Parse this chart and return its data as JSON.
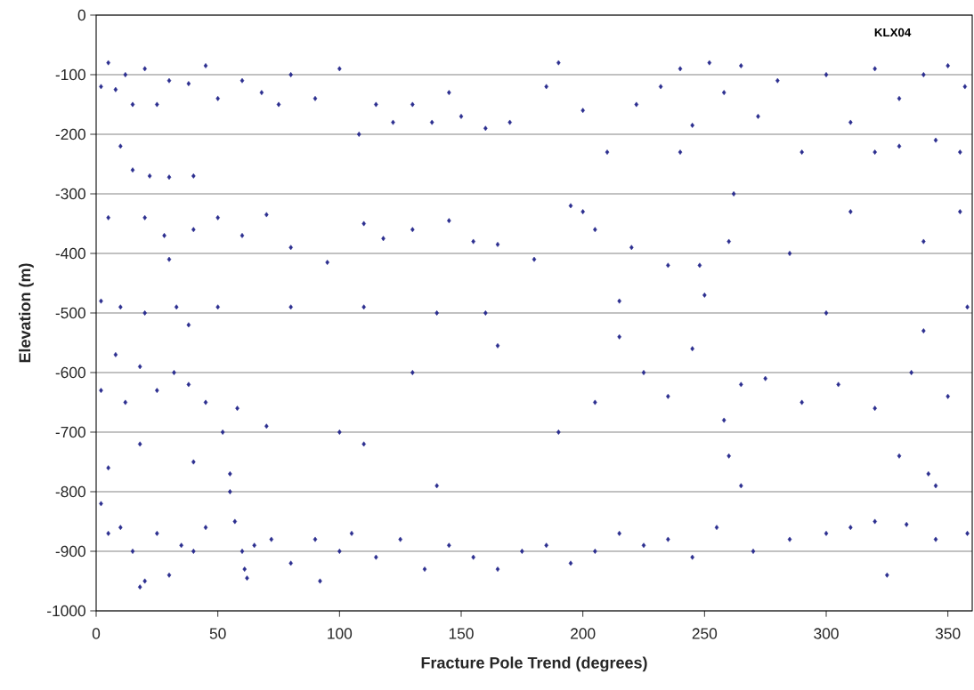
{
  "chart_data": {
    "type": "scatter",
    "xlabel": "Fracture Pole Trend (degrees)",
    "ylabel": "Elevation (m)",
    "annotations": [
      "KLX04"
    ],
    "color": "#2b2e8f",
    "marker": "diamond",
    "grid": "y",
    "xlim": [
      0,
      360
    ],
    "ylim": [
      -1000,
      0
    ],
    "xticks": [
      0,
      50,
      100,
      150,
      200,
      250,
      300,
      350
    ],
    "yticks": [
      -1000,
      -900,
      -800,
      -700,
      -600,
      -500,
      -400,
      -300,
      -200,
      -100,
      0
    ],
    "x": [
      2,
      5,
      8,
      12,
      15,
      20,
      25,
      30,
      38,
      45,
      50,
      60,
      68,
      75,
      80,
      90,
      100,
      108,
      115,
      122,
      130,
      138,
      145,
      150,
      160,
      170,
      185,
      190,
      200,
      210,
      222,
      232,
      240,
      245,
      252,
      258,
      265,
      272,
      280,
      290,
      300,
      310,
      320,
      330,
      340,
      350,
      357,
      355,
      345,
      330,
      320,
      240,
      262,
      200,
      15,
      22,
      30,
      40,
      10,
      5,
      20,
      28,
      30,
      40,
      50,
      60,
      70,
      80,
      95,
      110,
      118,
      130,
      145,
      155,
      165,
      180,
      195,
      205,
      220,
      235,
      248,
      260,
      285,
      310,
      340,
      355,
      2,
      10,
      20,
      33,
      38,
      50,
      80,
      110,
      140,
      160,
      215,
      250,
      300,
      340,
      358,
      2,
      8,
      12,
      18,
      25,
      32,
      38,
      45,
      52,
      58,
      70,
      100,
      130,
      165,
      190,
      205,
      215,
      225,
      235,
      245,
      258,
      265,
      275,
      290,
      305,
      320,
      335,
      350,
      5,
      18,
      40,
      55,
      110,
      140,
      260,
      265,
      330,
      342,
      345,
      2,
      5,
      10,
      15,
      20,
      25,
      30,
      35,
      40,
      45,
      55,
      57,
      60,
      61,
      62,
      65,
      72,
      80,
      90,
      100,
      105,
      115,
      125,
      135,
      145,
      155,
      165,
      175,
      185,
      195,
      205,
      215,
      225,
      235,
      245,
      255,
      270,
      285,
      300,
      310,
      320,
      333,
      345,
      358,
      18,
      92,
      325
    ],
    "values": [
      -120,
      -80,
      -125,
      -100,
      -150,
      -90,
      -150,
      -110,
      -115,
      -85,
      -140,
      -110,
      -130,
      -150,
      -100,
      -140,
      -90,
      -200,
      -150,
      -180,
      -150,
      -180,
      -130,
      -170,
      -190,
      -180,
      -120,
      -80,
      -160,
      -230,
      -150,
      -120,
      -90,
      -185,
      -80,
      -130,
      -85,
      -170,
      -110,
      -230,
      -100,
      -180,
      -90,
      -140,
      -100,
      -85,
      -120,
      -230,
      -210,
      -220,
      -230,
      -230,
      -300,
      -330,
      -260,
      -270,
      -272,
      -270,
      -220,
      -340,
      -340,
      -370,
      -410,
      -360,
      -340,
      -370,
      -335,
      -390,
      -415,
      -350,
      -375,
      -360,
      -345,
      -380,
      -385,
      -410,
      -320,
      -360,
      -390,
      -420,
      -420,
      -380,
      -400,
      -330,
      -380,
      -330,
      -480,
      -490,
      -500,
      -490,
      -520,
      -490,
      -490,
      -490,
      -500,
      -500,
      -480,
      -470,
      -500,
      -530,
      -490,
      -630,
      -570,
      -650,
      -590,
      -630,
      -600,
      -620,
      -650,
      -700,
      -660,
      -690,
      -700,
      -600,
      -555,
      -700,
      -650,
      -540,
      -600,
      -640,
      -560,
      -680,
      -620,
      -610,
      -650,
      -620,
      -660,
      -600,
      -640,
      -760,
      -720,
      -750,
      -770,
      -720,
      -790,
      -740,
      -790,
      -740,
      -770,
      -790,
      -820,
      -870,
      -860,
      -900,
      -950,
      -870,
      -940,
      -890,
      -900,
      -860,
      -800,
      -850,
      -900,
      -930,
      -945,
      -890,
      -880,
      -920,
      -880,
      -900,
      -870,
      -910,
      -880,
      -930,
      -890,
      -910,
      -930,
      -900,
      -890,
      -920,
      -900,
      -870,
      -890,
      -880,
      -910,
      -860,
      -900,
      -880,
      -870,
      -860,
      -850,
      -855,
      -880,
      -870,
      -960,
      -950,
      -940
    ]
  }
}
